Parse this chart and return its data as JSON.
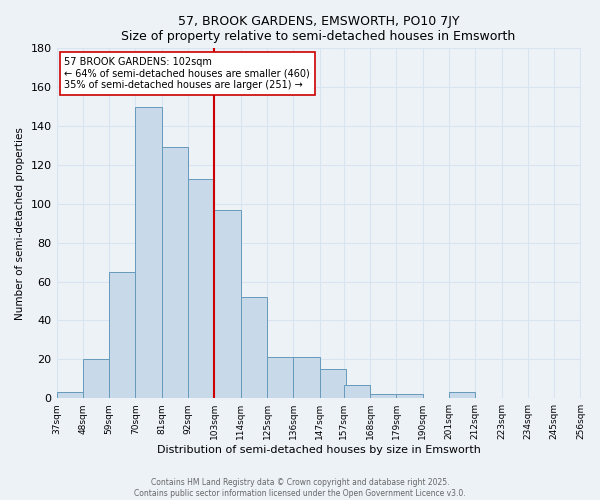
{
  "title": "57, BROOK GARDENS, EMSWORTH, PO10 7JY",
  "subtitle": "Size of property relative to semi-detached houses in Emsworth",
  "xlabel": "Distribution of semi-detached houses by size in Emsworth",
  "ylabel": "Number of semi-detached properties",
  "bin_labels": [
    "37sqm",
    "48sqm",
    "59sqm",
    "70sqm",
    "81sqm",
    "92sqm",
    "103sqm",
    "114sqm",
    "125sqm",
    "136sqm",
    "147sqm",
    "157sqm",
    "168sqm",
    "179sqm",
    "190sqm",
    "201sqm",
    "212sqm",
    "223sqm",
    "234sqm",
    "245sqm",
    "256sqm"
  ],
  "bin_left_edges": [
    37,
    48,
    59,
    70,
    81,
    92,
    103,
    114,
    125,
    136,
    147,
    157,
    168,
    179,
    190,
    201,
    212,
    223,
    234,
    245,
    256
  ],
  "bar_heights": [
    3,
    20,
    65,
    150,
    129,
    113,
    97,
    52,
    21,
    21,
    15,
    7,
    2,
    2,
    0,
    3,
    0,
    0,
    0,
    0
  ],
  "bar_color": "#c8daea",
  "bar_edge_color": "#6699bb",
  "reference_line_x": 103,
  "reference_line_color": "#cc0000",
  "annotation_line1": "57 BROOK GARDENS: 102sqm",
  "annotation_line2": "← 64% of semi-detached houses are smaller (460)",
  "annotation_line3": "35% of semi-detached houses are larger (251) →",
  "ylim": [
    0,
    180
  ],
  "yticks": [
    0,
    20,
    40,
    60,
    80,
    100,
    120,
    140,
    160,
    180
  ],
  "bg_color": "#edf2f7",
  "grid_color": "#d8e4f0",
  "footer_line1": "Contains HM Land Registry data © Crown copyright and database right 2025.",
  "footer_line2": "Contains public sector information licensed under the Open Government Licence v3.0."
}
